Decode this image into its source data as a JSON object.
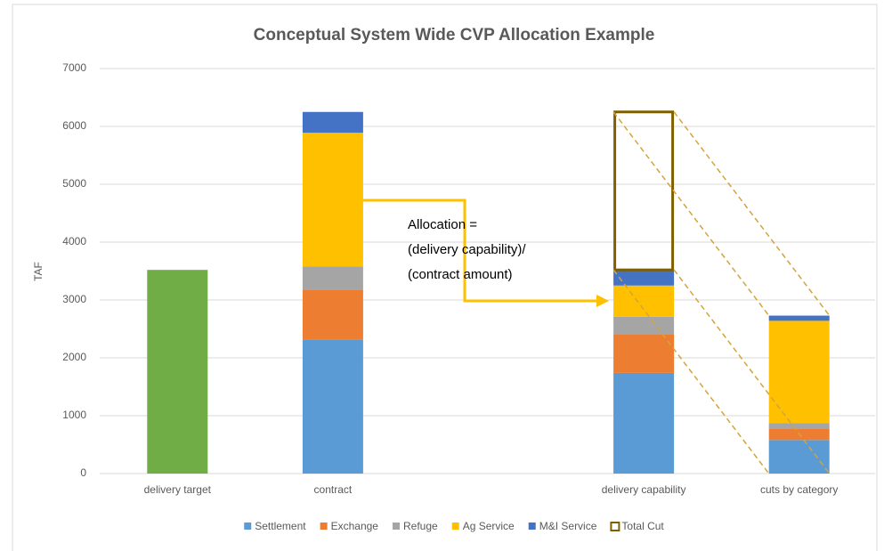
{
  "chart_data": {
    "type": "bar",
    "stacked": true,
    "title": "Conceptual System Wide CVP Allocation Example",
    "y_label": "TAF",
    "categories": [
      "delivery target",
      "contract",
      null,
      "delivery capability",
      "cuts by category"
    ],
    "target": {
      "color": "#70ad47",
      "values": [
        3520,
        null,
        null,
        null,
        null
      ]
    },
    "series": [
      {
        "name": "Settlement",
        "color": "#5b9bd5",
        "values": [
          null,
          2320,
          null,
          1740,
          580
        ]
      },
      {
        "name": "Exchange",
        "color": "#ed7d31",
        "values": [
          null,
          860,
          null,
          660,
          200
        ]
      },
      {
        "name": "Refuge",
        "color": "#a5a5a5",
        "values": [
          null,
          400,
          null,
          310,
          90
        ]
      },
      {
        "name": "Ag Service",
        "color": "#ffc000",
        "values": [
          null,
          2310,
          null,
          540,
          1770
        ]
      },
      {
        "name": "M&I Service",
        "color": "#4472c4",
        "values": [
          null,
          360,
          null,
          270,
          90
        ]
      },
      {
        "name": "Total Cut",
        "color": "#7f6000",
        "outline": true,
        "values": [
          null,
          null,
          null,
          2730,
          null
        ]
      }
    ],
    "annotation": [
      "Allocation =",
      "(delivery capability)/",
      "(contract amount)"
    ],
    "ylim": [
      0,
      7000
    ],
    "yticks": [
      0,
      1000,
      2000,
      3000,
      4000,
      5000,
      6000,
      7000
    ],
    "grid": true
  }
}
